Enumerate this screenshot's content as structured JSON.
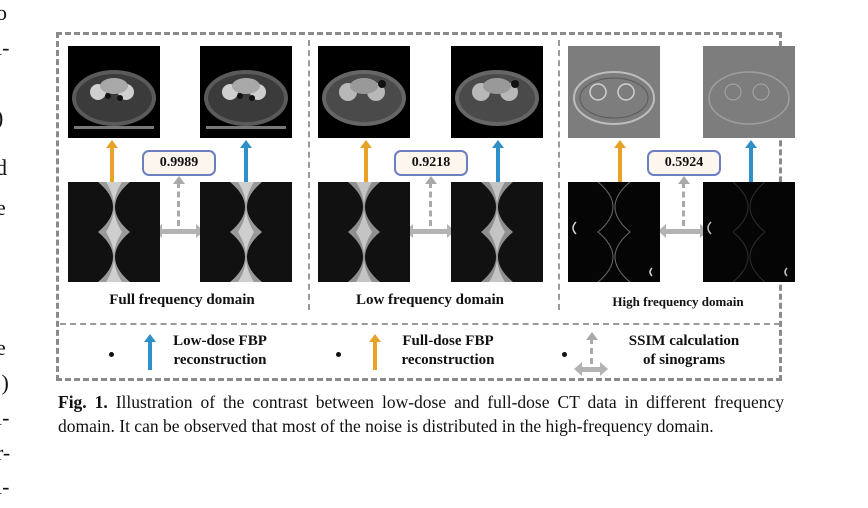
{
  "margin_fragments": [
    "o",
    "i-",
    ")",
    "d",
    "e",
    "e",
    ".)",
    "ı-",
    "r-",
    "ı-"
  ],
  "panels": [
    {
      "label": "Full frequency domain",
      "ssim": "0.9989"
    },
    {
      "label": "Low frequency domain",
      "ssim": "0.9218"
    },
    {
      "label": "High frequency domain",
      "ssim": "0.5924"
    }
  ],
  "legend": {
    "low_dose": "Low-dose FBP reconstruction",
    "low_dose_line1": "Low-dose FBP",
    "low_dose_line2": "reconstruction",
    "full_dose_line1": "Full-dose FBP",
    "full_dose_line2": "reconstruction",
    "ssim_line1": "SSIM calculation",
    "ssim_line2": "of sinograms"
  },
  "caption": {
    "label": "Fig. 1.",
    "text": " Illustration of the contrast between low-dose and full-dose CT data in different frequency domain. It can be observed that most of the noise is distributed in the high-frequency domain."
  },
  "colors": {
    "orange_arrow": "#e8a227",
    "blue_arrow": "#2f8fc9",
    "ssim_border": "#6d7fc1"
  }
}
